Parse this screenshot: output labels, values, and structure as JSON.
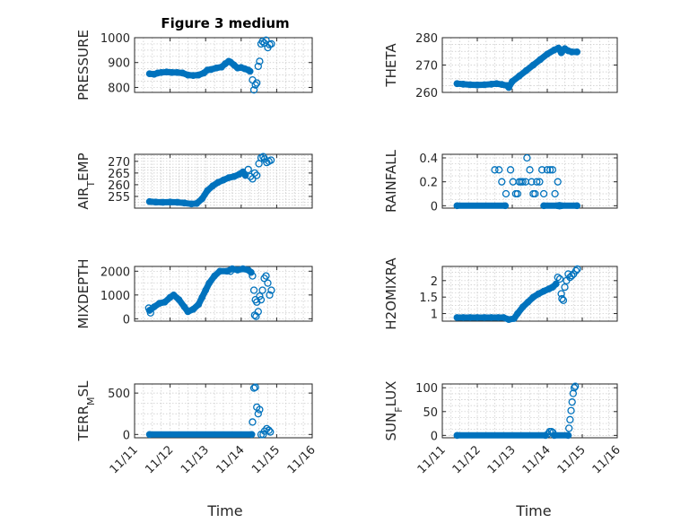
{
  "figure_title": "Figure 3 medium",
  "x_tick_labels": [
    "11/11",
    "11/12",
    "11/13",
    "11/14",
    "11/15",
    "11/16"
  ],
  "xlabel": "Time",
  "marker_color": "#0072BD",
  "chart_data": [
    {
      "type": "scatter",
      "title": "Figure 3 medium",
      "ylabel": "PRESSURE",
      "ylim": [
        780,
        1000
      ],
      "yticks": [
        800,
        900,
        1000
      ],
      "ytick_labels": [
        "800",
        "900",
        "1000"
      ],
      "segments": [
        [
          [
            11.42,
            855
          ],
          [
            11.55,
            853
          ],
          [
            11.65,
            858
          ],
          [
            11.75,
            860
          ],
          [
            11.9,
            862
          ],
          [
            12.05,
            860
          ],
          [
            12.2,
            860
          ],
          [
            12.35,
            858
          ],
          [
            12.5,
            850
          ],
          [
            12.65,
            848
          ],
          [
            12.8,
            850
          ],
          [
            12.95,
            858
          ],
          [
            13.05,
            870
          ],
          [
            13.15,
            872
          ],
          [
            13.3,
            878
          ],
          [
            13.45,
            882
          ],
          [
            13.55,
            895
          ],
          [
            13.65,
            905
          ],
          [
            13.7,
            902
          ],
          [
            13.8,
            890
          ],
          [
            13.9,
            878
          ],
          [
            14.0,
            880
          ],
          [
            14.1,
            875
          ],
          [
            14.2,
            870
          ],
          [
            14.25,
            865
          ]
        ]
      ],
      "points": [
        [
          14.32,
          830
        ],
        [
          14.36,
          790
        ],
        [
          14.4,
          810
        ],
        [
          14.44,
          818
        ],
        [
          14.48,
          885
        ],
        [
          14.52,
          905
        ],
        [
          14.56,
          975
        ],
        [
          14.6,
          985
        ],
        [
          14.65,
          978
        ],
        [
          14.7,
          990
        ],
        [
          14.75,
          960
        ],
        [
          14.8,
          972
        ],
        [
          14.85,
          975
        ]
      ]
    },
    {
      "type": "scatter",
      "ylabel": "THETA",
      "ylim": [
        260,
        280
      ],
      "yticks": [
        260,
        270,
        280
      ],
      "ytick_labels": [
        "260",
        "270",
        "280"
      ],
      "segments": [
        [
          [
            11.42,
            263.2
          ],
          [
            11.6,
            263
          ],
          [
            11.8,
            262.8
          ],
          [
            12.0,
            262.7
          ],
          [
            12.2,
            262.8
          ],
          [
            12.4,
            263
          ],
          [
            12.55,
            263.2
          ],
          [
            12.7,
            262.9
          ],
          [
            12.85,
            262.5
          ],
          [
            12.9,
            261.8
          ],
          [
            13.0,
            264
          ],
          [
            13.2,
            266
          ],
          [
            13.4,
            268
          ],
          [
            13.6,
            270
          ],
          [
            13.8,
            272
          ],
          [
            14.0,
            274
          ],
          [
            14.2,
            275.5
          ],
          [
            14.32,
            276.2
          ],
          [
            14.4,
            274.5
          ],
          [
            14.5,
            276
          ],
          [
            14.6,
            275.2
          ],
          [
            14.7,
            274.8
          ],
          [
            14.85,
            274.8
          ]
        ]
      ],
      "points": []
    },
    {
      "type": "scatter",
      "ylabel": "AIR_TEMP",
      "ylabel_main": "AIR",
      "ylabel_sub": "T",
      "ylabel_rest": "EMP",
      "ylim": [
        250,
        273
      ],
      "yticks": [
        255,
        260,
        265,
        270
      ],
      "ytick_labels": [
        "255",
        "260",
        "265",
        "270"
      ],
      "segments": [
        [
          [
            11.42,
            252.8
          ],
          [
            11.6,
            252.6
          ],
          [
            11.8,
            252.5
          ],
          [
            12.0,
            252.6
          ],
          [
            12.2,
            252.5
          ],
          [
            12.4,
            252.2
          ],
          [
            12.6,
            251.8
          ],
          [
            12.75,
            252
          ],
          [
            12.9,
            254
          ],
          [
            13.05,
            257.5
          ],
          [
            13.2,
            259.5
          ],
          [
            13.35,
            261
          ],
          [
            13.5,
            262
          ],
          [
            13.65,
            263
          ],
          [
            13.8,
            263.5
          ],
          [
            13.95,
            264.5
          ],
          [
            14.05,
            265.5
          ],
          [
            14.12,
            264
          ]
        ]
      ],
      "points": [
        [
          14.2,
          266.5
        ],
        [
          14.26,
          263.5
        ],
        [
          14.32,
          262.5
        ],
        [
          14.38,
          265
        ],
        [
          14.44,
          264
        ],
        [
          14.5,
          269
        ],
        [
          14.56,
          271.5
        ],
        [
          14.62,
          272
        ],
        [
          14.66,
          271
        ],
        [
          14.72,
          269.5
        ],
        [
          14.78,
          270
        ],
        [
          14.84,
          270.5
        ]
      ]
    },
    {
      "type": "scatter",
      "ylabel": "RAINFALL",
      "ylim": [
        -0.02,
        0.43
      ],
      "yticks": [
        0,
        0.2,
        0.4
      ],
      "ytick_labels": [
        "0",
        "0.2",
        "0.4"
      ],
      "segments": [
        [
          [
            11.42,
            0
          ],
          [
            12.8,
            0
          ]
        ],
        [
          [
            13.9,
            0
          ],
          [
            14.3,
            0
          ]
        ],
        [
          [
            14.4,
            0
          ],
          [
            14.85,
            0
          ]
        ]
      ],
      "points": [
        [
          12.5,
          0.3
        ],
        [
          12.62,
          0.3
        ],
        [
          12.7,
          0.2
        ],
        [
          12.82,
          0.1
        ],
        [
          12.95,
          0.3
        ],
        [
          13.02,
          0.2
        ],
        [
          13.1,
          0.1
        ],
        [
          13.15,
          0.1
        ],
        [
          13.2,
          0.2
        ],
        [
          13.25,
          0.2
        ],
        [
          13.3,
          0.2
        ],
        [
          13.38,
          0.2
        ],
        [
          13.42,
          0.4
        ],
        [
          13.5,
          0.3
        ],
        [
          13.55,
          0.2
        ],
        [
          13.6,
          0.1
        ],
        [
          13.65,
          0.1
        ],
        [
          13.7,
          0.2
        ],
        [
          13.78,
          0.2
        ],
        [
          13.85,
          0.3
        ],
        [
          13.9,
          0.1
        ],
        [
          14.0,
          0.3
        ],
        [
          14.08,
          0.3
        ],
        [
          14.15,
          0.3
        ],
        [
          14.22,
          0.1
        ],
        [
          14.3,
          0.2
        ],
        [
          14.35,
          0
        ]
      ]
    },
    {
      "type": "scatter",
      "ylabel": "MIXDEPTH",
      "ylim": [
        -100,
        2200
      ],
      "yticks": [
        0,
        1000,
        2000
      ],
      "ytick_labels": [
        "0",
        "1000",
        "2000"
      ],
      "segments": [
        [
          [
            11.42,
            350
          ],
          [
            11.55,
            500
          ],
          [
            11.7,
            650
          ],
          [
            11.85,
            700
          ],
          [
            12.0,
            900
          ],
          [
            12.1,
            1000
          ],
          [
            12.25,
            800
          ],
          [
            12.4,
            500
          ],
          [
            12.5,
            300
          ],
          [
            12.65,
            400
          ],
          [
            12.8,
            600
          ],
          [
            12.9,
            900
          ],
          [
            13.0,
            1200
          ],
          [
            13.1,
            1500
          ],
          [
            13.25,
            1800
          ],
          [
            13.4,
            2000
          ],
          [
            13.6,
            2000
          ],
          [
            13.75,
            2100
          ],
          [
            13.9,
            2050
          ],
          [
            14.05,
            2100
          ],
          [
            14.2,
            2050
          ],
          [
            14.28,
            1950
          ]
        ]
      ],
      "points": [
        [
          11.4,
          450
        ],
        [
          11.45,
          250
        ],
        [
          13.7,
          2000
        ],
        [
          14.32,
          1800
        ],
        [
          14.36,
          1200
        ],
        [
          14.4,
          800
        ],
        [
          14.44,
          700
        ],
        [
          14.48,
          300
        ],
        [
          14.52,
          950
        ],
        [
          14.56,
          800
        ],
        [
          14.6,
          1200
        ],
        [
          14.65,
          1700
        ],
        [
          14.7,
          1800
        ],
        [
          14.75,
          1500
        ],
        [
          14.8,
          1000
        ],
        [
          14.85,
          1200
        ],
        [
          14.38,
          150
        ],
        [
          14.42,
          100
        ]
      ]
    },
    {
      "type": "scatter",
      "ylabel": "H2OMIXRA",
      "ylim": [
        0.77,
        2.43
      ],
      "yticks": [
        1,
        1.5,
        2
      ],
      "ytick_labels": [
        "1",
        "1.5",
        "2"
      ],
      "segments": [
        [
          [
            11.42,
            0.88
          ],
          [
            11.6,
            0.88
          ],
          [
            11.8,
            0.88
          ],
          [
            12.0,
            0.88
          ],
          [
            12.2,
            0.88
          ],
          [
            12.4,
            0.88
          ],
          [
            12.6,
            0.88
          ],
          [
            12.75,
            0.88
          ],
          [
            12.9,
            0.82
          ],
          [
            13.05,
            0.85
          ],
          [
            13.15,
            1.0
          ],
          [
            13.3,
            1.2
          ],
          [
            13.45,
            1.35
          ],
          [
            13.6,
            1.5
          ],
          [
            13.75,
            1.6
          ],
          [
            13.9,
            1.68
          ],
          [
            14.05,
            1.75
          ],
          [
            14.15,
            1.8
          ],
          [
            14.25,
            1.9
          ]
        ]
      ],
      "points": [
        [
          14.3,
          2.1
        ],
        [
          14.36,
          2.05
        ],
        [
          14.42,
          1.45
        ],
        [
          14.46,
          1.4
        ],
        [
          14.5,
          1.8
        ],
        [
          14.55,
          2.0
        ],
        [
          14.6,
          2.2
        ],
        [
          14.65,
          2.1
        ],
        [
          14.7,
          2.15
        ],
        [
          14.75,
          2.2
        ],
        [
          14.82,
          2.3
        ],
        [
          14.86,
          2.35
        ],
        [
          14.4,
          1.6
        ]
      ]
    },
    {
      "type": "scatter",
      "ylabel": "TERR_MSL",
      "ylabel_main": "TERR",
      "ylabel_sub": "M",
      "ylabel_rest": "SL",
      "ylim": [
        -40,
        610
      ],
      "yticks": [
        0,
        500
      ],
      "ytick_labels": [
        "0",
        "500"
      ],
      "segments": [
        [
          [
            11.42,
            0
          ],
          [
            14.3,
            0
          ]
        ]
      ],
      "points": [
        [
          14.32,
          150
        ],
        [
          14.36,
          560
        ],
        [
          14.4,
          570
        ],
        [
          14.44,
          330
        ],
        [
          14.48,
          250
        ],
        [
          14.52,
          300
        ],
        [
          14.56,
          0
        ],
        [
          14.62,
          0
        ],
        [
          14.66,
          40
        ],
        [
          14.72,
          70
        ],
        [
          14.78,
          50
        ],
        [
          14.82,
          30
        ]
      ]
    },
    {
      "type": "scatter",
      "ylabel": "SUN_FLUX",
      "ylabel_main": "SUN",
      "ylabel_sub": "F",
      "ylabel_rest": "LUX",
      "ylim": [
        -5,
        108
      ],
      "yticks": [
        0,
        50,
        100
      ],
      "ytick_labels": [
        "0",
        "50",
        "100"
      ],
      "segments": [
        [
          [
            11.42,
            0
          ],
          [
            13.95,
            0
          ]
        ],
        [
          [
            14.2,
            0
          ],
          [
            14.6,
            0
          ]
        ]
      ],
      "points": [
        [
          14.02,
          3
        ],
        [
          14.07,
          8
        ],
        [
          14.12,
          8
        ],
        [
          14.16,
          6
        ],
        [
          14.62,
          15
        ],
        [
          14.65,
          33
        ],
        [
          14.68,
          52
        ],
        [
          14.71,
          70
        ],
        [
          14.74,
          88
        ],
        [
          14.77,
          100
        ],
        [
          14.8,
          103
        ]
      ]
    }
  ]
}
